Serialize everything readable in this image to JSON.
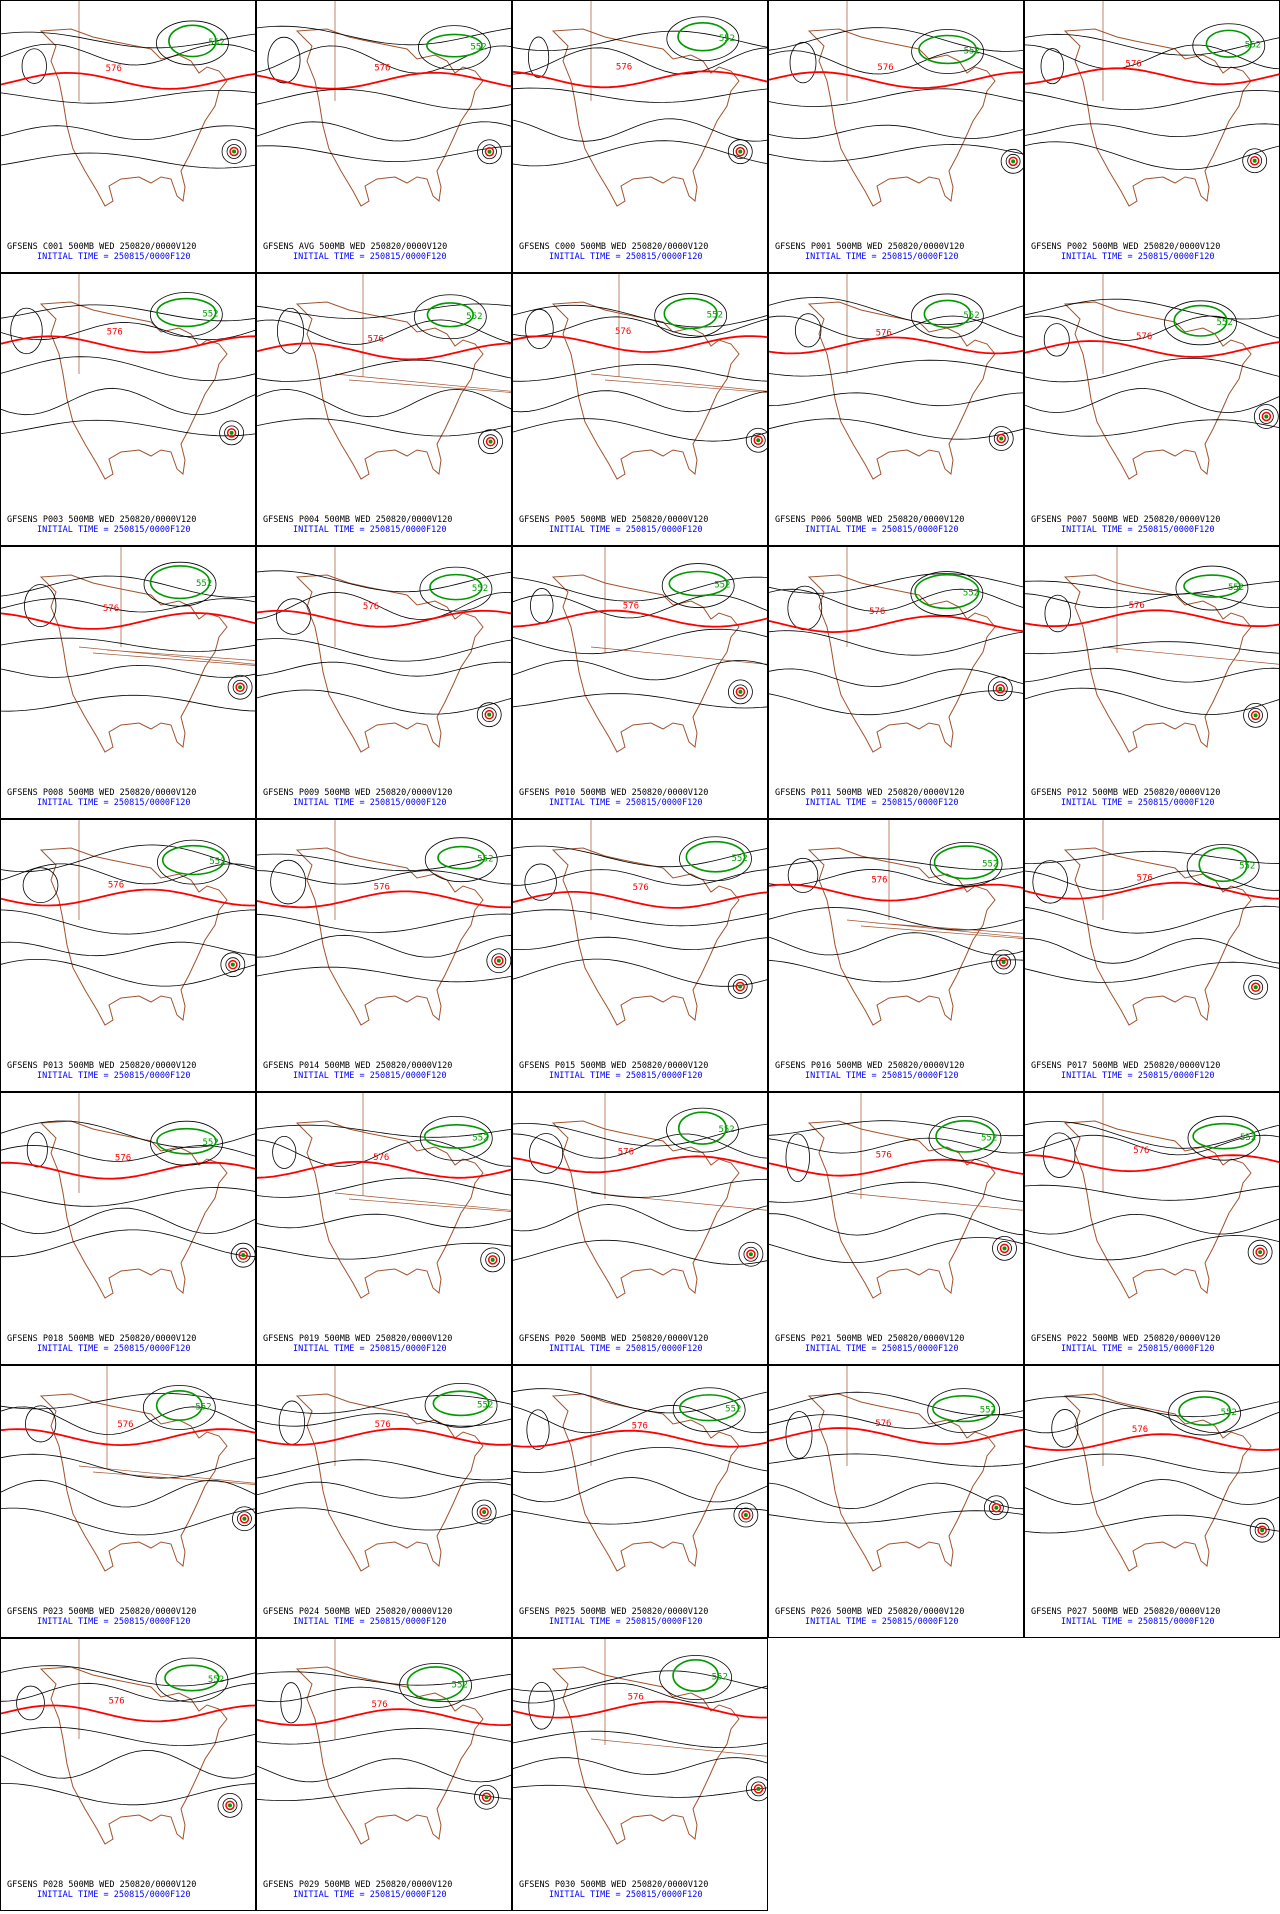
{
  "panels": [
    {
      "title": "GFSENS C001 500MB WED 250820/0000V120",
      "init": "INITIAL TIME = 250815/0000F120",
      "labels": [
        "552",
        "576"
      ]
    },
    {
      "title": "GFSENS AVG 500MB WED 250820/0000V120",
      "init": "INITIAL TIME = 250815/0000F120",
      "labels": [
        "552",
        "576"
      ]
    },
    {
      "title": "GFSENS C000 500MB WED 250820/0000V120",
      "init": "INITIAL TIME = 250815/0000F120",
      "labels": [
        "552",
        "576"
      ]
    },
    {
      "title": "GFSENS P001 500MB WED 250820/0000V120",
      "init": "INITIAL TIME = 250815/0000F120",
      "labels": [
        "552",
        "576"
      ]
    },
    {
      "title": "GFSENS P002 500MB WED 250820/0000V120",
      "init": "INITIAL TIME = 250815/0000F120",
      "labels": [
        "552",
        "576"
      ]
    },
    {
      "title": "GFSENS P003 500MB WED 250820/0000V120",
      "init": "INITIAL TIME = 250815/0000F120",
      "labels": [
        "552",
        "576"
      ]
    },
    {
      "title": "GFSENS P004 500MB WED 250820/0000V120",
      "init": "INITIAL TIME = 250815/0000F120",
      "labels": [
        "552",
        "576"
      ]
    },
    {
      "title": "GFSENS P005 500MB WED 250820/0000V120",
      "init": "INITIAL TIME = 250815/0000F120",
      "labels": [
        "552",
        "576"
      ]
    },
    {
      "title": "GFSENS P006 500MB WED 250820/0000V120",
      "init": "INITIAL TIME = 250815/0000F120",
      "labels": [
        "552",
        "576"
      ]
    },
    {
      "title": "GFSENS P007 500MB WED 250820/0000V120",
      "init": "INITIAL TIME = 250815/0000F120",
      "labels": [
        "552",
        "576"
      ]
    },
    {
      "title": "GFSENS P008 500MB WED 250820/0000V120",
      "init": "INITIAL TIME = 250815/0000F120",
      "labels": [
        "552",
        "576"
      ]
    },
    {
      "title": "GFSENS P009 500MB WED 250820/0000V120",
      "init": "INITIAL TIME = 250815/0000F120",
      "labels": [
        "552",
        "576"
      ]
    },
    {
      "title": "GFSENS P010 500MB WED 250820/0000V120",
      "init": "INITIAL TIME = 250815/0000F120",
      "labels": [
        "552",
        "576"
      ]
    },
    {
      "title": "GFSENS P011 500MB WED 250820/0000V120",
      "init": "INITIAL TIME = 250815/0000F120",
      "labels": [
        "552",
        "576"
      ]
    },
    {
      "title": "GFSENS P012 500MB WED 250820/0000V120",
      "init": "INITIAL TIME = 250815/0000F120",
      "labels": [
        "552",
        "576"
      ]
    },
    {
      "title": "GFSENS P013 500MB WED 250820/0000V120",
      "init": "INITIAL TIME = 250815/0000F120",
      "labels": [
        "552",
        "576"
      ]
    },
    {
      "title": "GFSENS P014 500MB WED 250820/0000V120",
      "init": "INITIAL TIME = 250815/0000F120",
      "labels": [
        "552",
        "576"
      ]
    },
    {
      "title": "GFSENS P015 500MB WED 250820/0000V120",
      "init": "INITIAL TIME = 250815/0000F120",
      "labels": [
        "552",
        "576"
      ]
    },
    {
      "title": "GFSENS P016 500MB WED 250820/0000V120",
      "init": "INITIAL TIME = 250815/0000F120",
      "labels": [
        "552",
        "576"
      ]
    },
    {
      "title": "GFSENS P017 500MB WED 250820/0000V120",
      "init": "INITIAL TIME = 250815/0000F120",
      "labels": [
        "552",
        "576"
      ]
    },
    {
      "title": "GFSENS P018 500MB WED 250820/0000V120",
      "init": "INITIAL TIME = 250815/0000F120",
      "labels": [
        "552",
        "576"
      ]
    },
    {
      "title": "GFSENS P019 500MB WED 250820/0000V120",
      "init": "INITIAL TIME = 250815/0000F120",
      "labels": [
        "552",
        "576"
      ]
    },
    {
      "title": "GFSENS P020 500MB WED 250820/0000V120",
      "init": "INITIAL TIME = 250815/0000F120",
      "labels": [
        "552",
        "576"
      ]
    },
    {
      "title": "GFSENS P021 500MB WED 250820/0000V120",
      "init": "INITIAL TIME = 250815/0000F120",
      "labels": [
        "552",
        "576"
      ]
    },
    {
      "title": "GFSENS P022 500MB WED 250820/0000V120",
      "init": "INITIAL TIME = 250815/0000F120",
      "labels": [
        "552",
        "576"
      ]
    },
    {
      "title": "GFSENS P023 500MB WED 250820/0000V120",
      "init": "INITIAL TIME = 250815/0000F120",
      "labels": [
        "552",
        "576"
      ]
    },
    {
      "title": "GFSENS P024 500MB WED 250820/0000V120",
      "init": "INITIAL TIME = 250815/0000F120",
      "labels": [
        "552",
        "576"
      ]
    },
    {
      "title": "GFSENS P025 500MB WED 250820/0000V120",
      "init": "INITIAL TIME = 250815/0000F120",
      "labels": [
        "552",
        "576"
      ]
    },
    {
      "title": "GFSENS P026 500MB WED 250820/0000V120",
      "init": "INITIAL TIME = 250815/0000F120",
      "labels": [
        "552",
        "576"
      ]
    },
    {
      "title": "GFSENS P027 500MB WED 250820/0000V120",
      "init": "INITIAL TIME = 250815/0000F120",
      "labels": [
        "552",
        "576"
      ]
    },
    {
      "title": "GFSENS P028 500MB WED 250820/0000V120",
      "init": "INITIAL TIME = 250815/0000F120",
      "labels": [
        "552",
        "576"
      ]
    },
    {
      "title": "GFSENS P029 500MB WED 250820/0000V120",
      "init": "INITIAL TIME = 250815/0000F120",
      "labels": [
        "552",
        "576"
      ]
    },
    {
      "title": "GFSENS P030 500MB WED 250820/0000V120",
      "init": "INITIAL TIME = 250815/0000F120",
      "labels": [
        "552",
        "576"
      ]
    }
  ]
}
